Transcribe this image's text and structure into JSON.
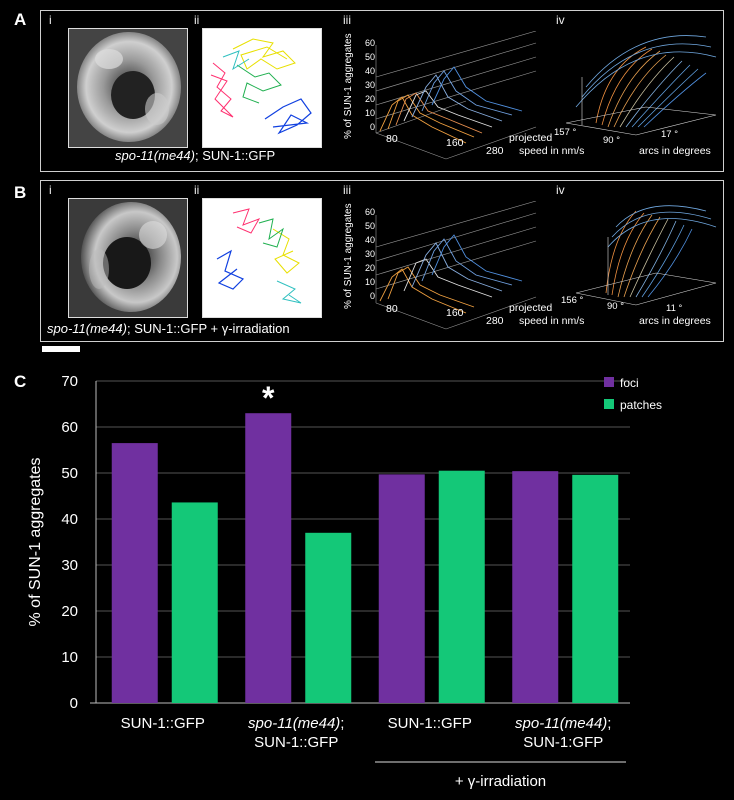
{
  "panel_a": {
    "letter": "A",
    "sub_i": "i",
    "sub_ii": "ii",
    "sub_iii": "iii",
    "sub_iv": "iv",
    "caption_italic": "spo-11(me44)",
    "caption_rest": "; SUN-1::GFP",
    "speed_ylabel": "% of SUN-1 aggregates",
    "speed_yticks": [
      "0",
      "10",
      "20",
      "30",
      "40",
      "50",
      "60"
    ],
    "speed_xticks": [
      "80",
      "160",
      "280"
    ],
    "speed_xlabel_1": "projected",
    "speed_xlabel_2": "speed in nm/s",
    "arc_ticks": [
      "157 °",
      "90 °",
      "17 °"
    ],
    "arc_xlabel": "arcs in degrees"
  },
  "panel_b": {
    "letter": "B",
    "sub_i": "i",
    "sub_ii": "ii",
    "sub_iii": "iii",
    "sub_iv": "iv",
    "caption_italic": "spo-11(me44)",
    "caption_rest": "; SUN-1::GFP + γ-irradiation",
    "speed_ylabel": "% of SUN-1 aggregates",
    "speed_yticks": [
      "0",
      "10",
      "20",
      "30",
      "40",
      "50",
      "60"
    ],
    "speed_xticks": [
      "80",
      "160",
      "280"
    ],
    "speed_xlabel_1": "projected",
    "speed_xlabel_2": "speed in nm/s",
    "arc_ticks": [
      "156 °",
      "90 °",
      "11 °"
    ],
    "arc_xlabel": "arcs in degrees"
  },
  "panel_c": {
    "letter": "C",
    "asterisk": "*",
    "group_label": "+ γ-irradiation"
  },
  "colors": {
    "foci": "#7030a0",
    "patches": "#14c878",
    "background": "#000000",
    "axis": "#bbbbbb"
  },
  "chart_data": {
    "type": "bar",
    "ylabel": "% of  SUN-1 aggregates",
    "ylim": [
      0,
      70
    ],
    "yticks": [
      0,
      10,
      20,
      30,
      40,
      50,
      60,
      70
    ],
    "grid": true,
    "legend_position": "top-right",
    "categories": [
      {
        "line1_italic": "",
        "line1": "SUN-1::GFP",
        "line2": ""
      },
      {
        "line1_italic": "spo-11(me44)",
        "line1": ";",
        "line2": "SUN-1::GFP"
      },
      {
        "line1_italic": "",
        "line1": "SUN-1::GFP",
        "line2": ""
      },
      {
        "line1_italic": "spo-11(me44)",
        "line1": ";",
        "line2": "SUN-1:GFP"
      }
    ],
    "series": [
      {
        "name": "foci",
        "color": "#7030a0",
        "values": [
          56.5,
          63,
          49.7,
          50.4
        ]
      },
      {
        "name": "patches",
        "color": "#14c878",
        "values": [
          43.6,
          37,
          50.5,
          49.6
        ]
      }
    ]
  }
}
